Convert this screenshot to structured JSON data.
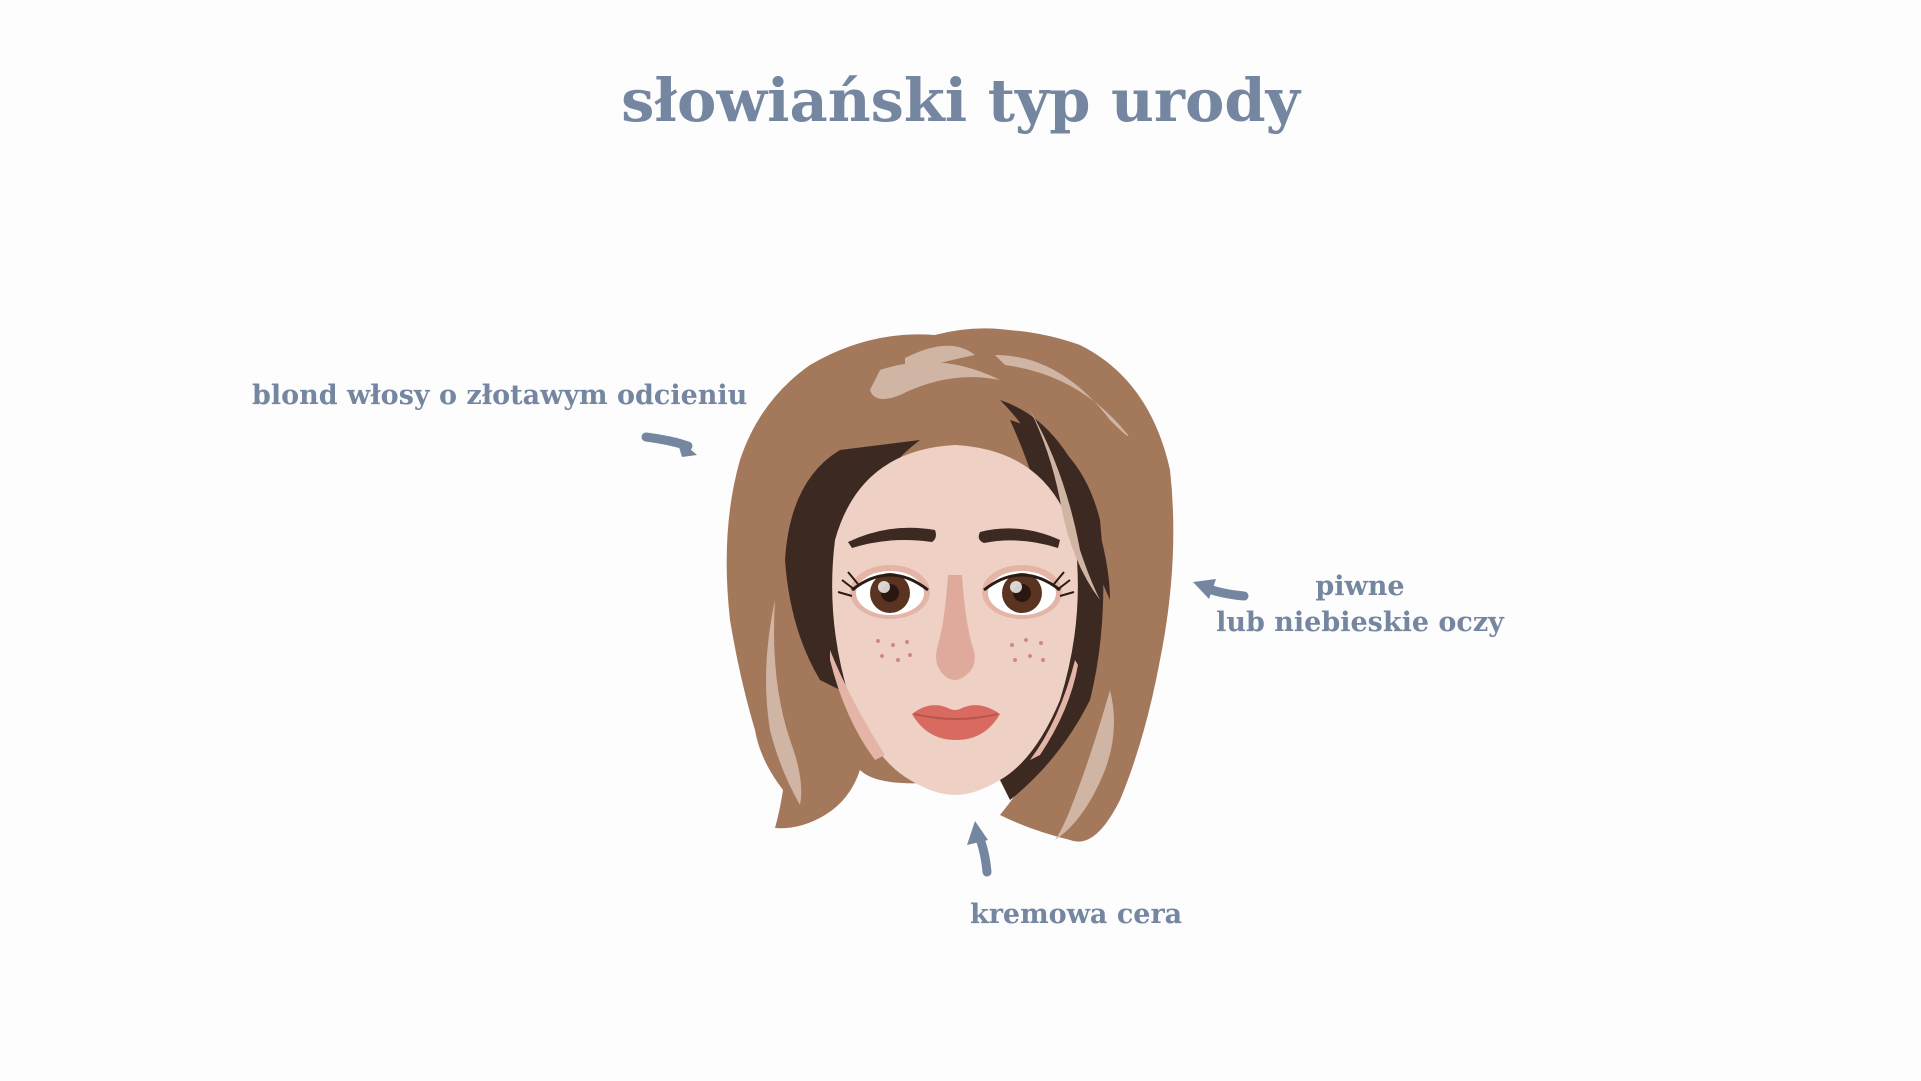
{
  "title": "słowiański typ urody",
  "annotations": {
    "hair": "blond włosy o złotawym odcieniu",
    "eyes_line1": "piwne",
    "eyes_line2": "lub niebieskie oczy",
    "skin": "kremowa cera"
  },
  "colors": {
    "text": "#7586a1",
    "arrow": "#7586a1",
    "hair": "#a3785b",
    "hair_dark": "#3c2922",
    "hair_highlight": "#d1b5a4",
    "skin": "#efd0c5",
    "skin_shadow": "#e4b5a6",
    "lips": "#d96a5f",
    "iris": "#5a3420"
  }
}
